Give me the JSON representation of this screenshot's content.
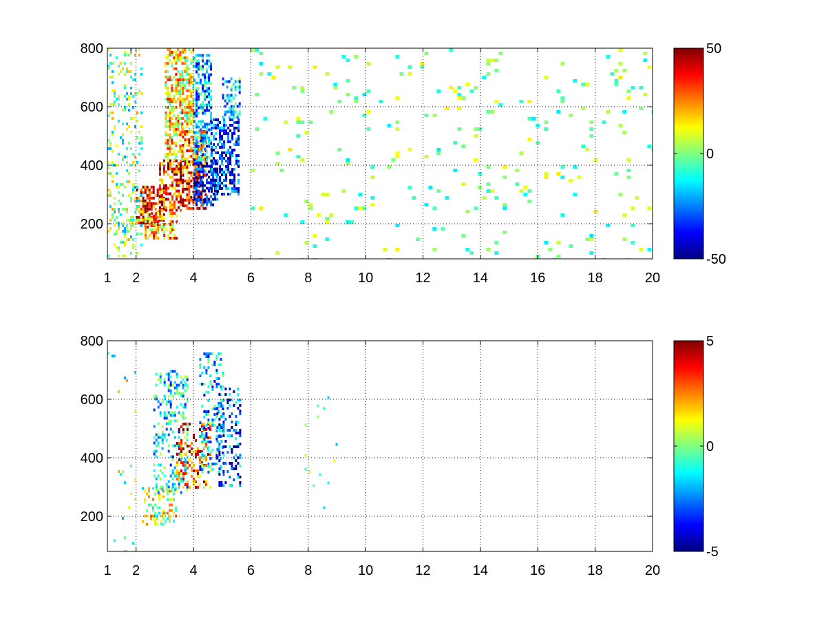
{
  "chart_data": [
    {
      "type": "heatmap",
      "colormap": "jet",
      "xlim": [
        1,
        20
      ],
      "ylim": [
        80,
        800
      ],
      "x_ticks": [
        1,
        2,
        4,
        6,
        8,
        10,
        12,
        14,
        16,
        18,
        20
      ],
      "x_tick_labels": [
        "1",
        "2",
        "4",
        "6",
        "8",
        "10",
        "12",
        "14",
        "16",
        "18",
        "20"
      ],
      "y_ticks": [
        200,
        400,
        600,
        800
      ],
      "y_tick_labels": [
        "200",
        "400",
        "600",
        "800"
      ],
      "grid": true,
      "colorbar": {
        "min": -50,
        "max": 50,
        "ticks": [
          -50,
          0,
          50
        ],
        "tick_labels": [
          "-50",
          "0",
          "50"
        ]
      },
      "regions": [
        {
          "x": [
            2.0,
            3.0
          ],
          "y": [
            190,
            330
          ],
          "value": 40
        },
        {
          "x": [
            2.8,
            3.6
          ],
          "y": [
            250,
            420
          ],
          "value": 35
        },
        {
          "x": [
            3.0,
            3.6
          ],
          "y": [
            420,
            800
          ],
          "value": 15
        },
        {
          "x": [
            3.6,
            4.4
          ],
          "y": [
            250,
            370
          ],
          "value": 40
        },
        {
          "x": [
            3.6,
            4.4
          ],
          "y": [
            370,
            520
          ],
          "value": 25
        },
        {
          "x": [
            3.6,
            4.0
          ],
          "y": [
            520,
            800
          ],
          "value": 10
        },
        {
          "x": [
            4.0,
            4.8
          ],
          "y": [
            260,
            420
          ],
          "value": -40
        },
        {
          "x": [
            4.0,
            4.6
          ],
          "y": [
            420,
            780
          ],
          "value": -20
        },
        {
          "x": [
            4.6,
            5.6
          ],
          "y": [
            300,
            560
          ],
          "value": -35
        },
        {
          "x": [
            5.0,
            5.6
          ],
          "y": [
            560,
            700
          ],
          "value": -15
        },
        {
          "x": [
            2.3,
            3.4
          ],
          "y": [
            150,
            240
          ],
          "value": 20
        },
        {
          "x": [
            1.0,
            2.2
          ],
          "y": [
            90,
            800
          ],
          "value": 0
        },
        {
          "x": [
            6.0,
            20.0
          ],
          "y": [
            80,
            800
          ],
          "value": 0
        }
      ]
    },
    {
      "type": "heatmap",
      "colormap": "jet",
      "xlim": [
        1,
        20
      ],
      "ylim": [
        80,
        800
      ],
      "x_ticks": [
        1,
        2,
        4,
        6,
        8,
        10,
        12,
        14,
        16,
        18,
        20
      ],
      "x_tick_labels": [
        "1",
        "2",
        "4",
        "6",
        "8",
        "10",
        "12",
        "14",
        "16",
        "18",
        "20"
      ],
      "y_ticks": [
        200,
        400,
        600,
        800
      ],
      "y_tick_labels": [
        "200",
        "400",
        "600",
        "800"
      ],
      "grid": true,
      "colorbar": {
        "min": -5,
        "max": 5,
        "ticks": [
          -5,
          0,
          5
        ],
        "tick_labels": [
          "-5",
          "0",
          "5"
        ]
      },
      "regions": [
        {
          "x": [
            2.2,
            3.4
          ],
          "y": [
            170,
            300
          ],
          "value": 0.5
        },
        {
          "x": [
            2.6,
            3.8
          ],
          "y": [
            280,
            700
          ],
          "value": -1.5
        },
        {
          "x": [
            3.4,
            4.6
          ],
          "y": [
            300,
            520
          ],
          "value": 3
        },
        {
          "x": [
            4.2,
            5.0
          ],
          "y": [
            350,
            760
          ],
          "value": -2
        },
        {
          "x": [
            4.8,
            5.6
          ],
          "y": [
            300,
            640
          ],
          "value": -3
        },
        {
          "x": [
            1.0,
            2.0
          ],
          "y": [
            80,
            800
          ],
          "value": 0
        },
        {
          "x": [
            7.8,
            9.0
          ],
          "y": [
            200,
            620
          ],
          "value": 0
        }
      ]
    }
  ]
}
